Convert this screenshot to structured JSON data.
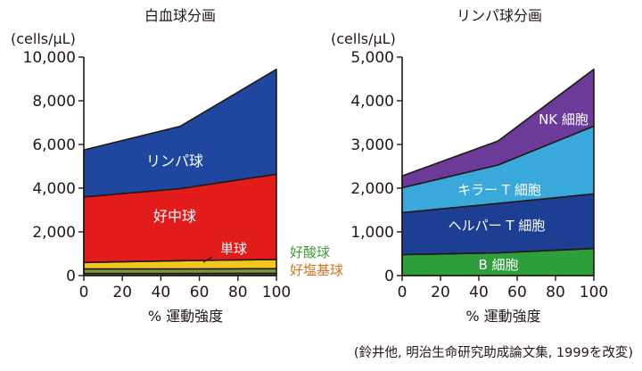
{
  "chart_data": [
    {
      "type": "area",
      "stacked": true,
      "title": "白血球分画",
      "ylabel": "(cells/μL)",
      "xlabel": "% 運動強度",
      "x": [
        0,
        50,
        100
      ],
      "xlim": [
        0,
        100
      ],
      "ylim": [
        0,
        10000
      ],
      "xticks": [
        "0",
        "20",
        "40",
        "60",
        "80",
        "100"
      ],
      "yticks": [
        "0",
        "2,000",
        "4,000",
        "6,000",
        "8,000",
        "10,000"
      ],
      "grid": false,
      "legend": "none",
      "series": [
        {
          "name": "好塩基球",
          "values": [
            100,
            100,
            110
          ],
          "color": "#4a5a2a",
          "label_color": "#d4761c"
        },
        {
          "name": "好酸球",
          "values": [
            200,
            200,
            210
          ],
          "color": "#7a9a3e",
          "label_color": "#3f9a3a"
        },
        {
          "name": "単球",
          "values": [
            300,
            380,
            420
          ],
          "color": "#f2c81c",
          "label_color": "#ffffff"
        },
        {
          "name": "好中球",
          "values": [
            3000,
            3300,
            3900
          ],
          "color": "#e21b1b",
          "label_color": "#ffffff"
        },
        {
          "name": "リンパ球",
          "values": [
            2150,
            2850,
            4800
          ],
          "color": "#1f47a0",
          "label_color": "#ffffff"
        }
      ]
    },
    {
      "type": "area",
      "stacked": true,
      "title": "リンパ球分画",
      "ylabel": "(cells/μL)",
      "xlabel": "% 運動強度",
      "x": [
        0,
        50,
        100
      ],
      "xlim": [
        0,
        100
      ],
      "ylim": [
        0,
        5000
      ],
      "xticks": [
        "0",
        "20",
        "40",
        "60",
        "80",
        "100"
      ],
      "yticks": [
        "0",
        "1,000",
        "2,000",
        "3,000",
        "4,000",
        "5,000"
      ],
      "grid": false,
      "legend": "none",
      "series": [
        {
          "name": "B 細胞",
          "values": [
            480,
            520,
            620
          ],
          "color": "#2e9e3a",
          "label_color": "#ffffff"
        },
        {
          "name": "ヘルパー T 細胞",
          "values": [
            960,
            1130,
            1250
          ],
          "color": "#1c3f94",
          "label_color": "#ffffff"
        },
        {
          "name": "キラー T 細胞",
          "values": [
            570,
            880,
            1550
          ],
          "color": "#39a9dc",
          "label_color": "#ffffff"
        },
        {
          "name": "NK 細胞",
          "values": [
            270,
            550,
            1300
          ],
          "color": "#6c3a98",
          "label_color": "#ffffff"
        }
      ]
    }
  ],
  "source_note": "(鈴井他, 明治生命研究助成論文集, 1999を改変)"
}
